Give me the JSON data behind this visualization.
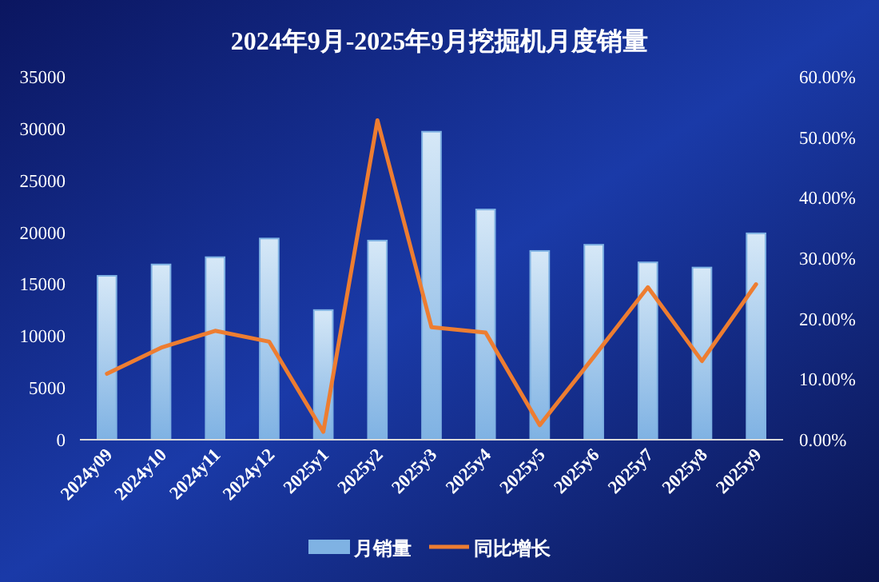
{
  "chart_data": {
    "type": "bar",
    "title": "2024年9月-2025年9月挖掘机月度销量",
    "categories": [
      "2024y09",
      "2024y10",
      "2024y11",
      "2024y12",
      "2025y1",
      "2025y2",
      "2025y3",
      "2025y4",
      "2025y5",
      "2025y6",
      "2025y7",
      "2025y8",
      "2025y9"
    ],
    "series": [
      {
        "name": "月销量",
        "color": "#7fb2e3",
        "values": [
          15800,
          16900,
          17600,
          19400,
          12500,
          19200,
          29700,
          22200,
          18200,
          18800,
          17100,
          16600,
          19900
        ]
      },
      {
        "name": "同比增长",
        "type": "line",
        "axis": "y2",
        "color": "#ed7d31",
        "values": [
          10.9,
          15.2,
          18.0,
          16.2,
          1.3,
          52.8,
          18.6,
          17.7,
          2.4,
          13.7,
          25.2,
          13.0,
          25.7
        ]
      }
    ],
    "ylim": [
      0,
      35000
    ],
    "yticks": [
      0,
      5000,
      10000,
      15000,
      20000,
      25000,
      30000,
      35000
    ],
    "y2lim": [
      0,
      60
    ],
    "y2ticks": [
      {
        "value": 0,
        "label": "0.00%"
      },
      {
        "value": 10,
        "label": "10.00%"
      },
      {
        "value": 20,
        "label": "20.00%"
      },
      {
        "value": 30,
        "label": "30.00%"
      },
      {
        "value": 40,
        "label": "40.00%"
      },
      {
        "value": 50,
        "label": "50.00%"
      },
      {
        "value": 60,
        "label": "60.00%"
      }
    ],
    "grid": false,
    "legend": "bottom",
    "marker": "none",
    "line_style": "solid"
  }
}
